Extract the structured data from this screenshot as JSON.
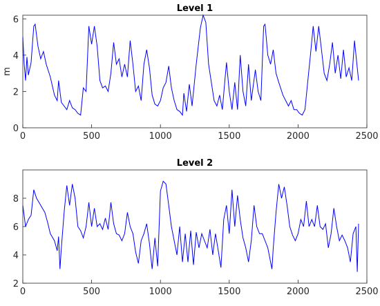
{
  "chart_data": [
    {
      "type": "line",
      "title": "Level 1",
      "ylabel": "m",
      "color": "#0000ff",
      "x": [
        0,
        10,
        20,
        30,
        40,
        60,
        80,
        90,
        110,
        130,
        150,
        170,
        200,
        230,
        250,
        260,
        280,
        300,
        320,
        340,
        360,
        380,
        400,
        420,
        440,
        460,
        480,
        500,
        520,
        540,
        560,
        580,
        600,
        620,
        640,
        660,
        680,
        700,
        720,
        740,
        760,
        780,
        800,
        820,
        840,
        860,
        880,
        900,
        920,
        940,
        960,
        980,
        1000,
        1020,
        1040,
        1060,
        1080,
        1100,
        1120,
        1140,
        1160,
        1170,
        1190,
        1210,
        1230,
        1260,
        1290,
        1310,
        1330,
        1350,
        1370,
        1390,
        1410,
        1430,
        1450,
        1480,
        1500,
        1520,
        1540,
        1560,
        1580,
        1600,
        1620,
        1640,
        1660,
        1690,
        1710,
        1730,
        1750,
        1760,
        1780,
        1800,
        1820,
        1840,
        1860,
        1890,
        1910,
        1930,
        1950,
        1970,
        1990,
        2010,
        2030,
        2050,
        2070,
        2090,
        2110,
        2130,
        2150,
        2170,
        2190,
        2210,
        2230,
        2250,
        2270,
        2290,
        2310,
        2330,
        2350,
        2370,
        2390,
        2410,
        2430,
        2440
      ],
      "values": [
        5.0,
        3.5,
        2.6,
        3.9,
        2.9,
        3.6,
        5.6,
        5.7,
        4.5,
        3.8,
        4.2,
        3.5,
        2.8,
        1.8,
        1.5,
        2.6,
        1.4,
        1.2,
        1.0,
        1.5,
        1.1,
        1.0,
        0.8,
        0.7,
        2.2,
        2.0,
        5.6,
        4.6,
        5.6,
        4.5,
        2.6,
        2.2,
        2.3,
        2.0,
        3.0,
        4.7,
        3.5,
        3.8,
        2.8,
        3.5,
        2.8,
        4.8,
        3.5,
        2.0,
        2.3,
        1.5,
        3.5,
        4.3,
        3.3,
        1.8,
        1.3,
        1.2,
        1.5,
        2.2,
        2.5,
        3.4,
        2.2,
        1.5,
        1.0,
        0.9,
        0.7,
        1.9,
        0.9,
        2.4,
        1.2,
        3.5,
        5.5,
        6.2,
        5.8,
        3.5,
        2.5,
        1.5,
        1.2,
        1.8,
        1.0,
        3.6,
        2.0,
        1.0,
        2.5,
        1.0,
        4.0,
        2.0,
        1.2,
        3.5,
        1.5,
        3.2,
        2.0,
        1.5,
        5.6,
        5.7,
        4.0,
        3.5,
        4.3,
        3.0,
        2.5,
        1.8,
        1.5,
        1.2,
        1.5,
        1.0,
        1.0,
        0.8,
        0.7,
        1.0,
        2.5,
        4.0,
        5.6,
        4.2,
        5.6,
        4.3,
        3.0,
        2.6,
        3.5,
        4.7,
        3.0,
        4.0,
        2.7,
        4.3,
        2.8,
        3.3,
        2.6,
        4.8,
        3.3,
        2.6
      ],
      "xlim": [
        0,
        2500
      ],
      "xticks": [
        0,
        500,
        1000,
        1500,
        2000,
        2500
      ],
      "ylim": [
        0,
        6.2
      ],
      "yticks": [
        0,
        2,
        4,
        6
      ]
    },
    {
      "type": "line",
      "title": "Level 2",
      "color": "#0000ff",
      "x": [
        0,
        20,
        40,
        60,
        80,
        100,
        130,
        160,
        180,
        200,
        230,
        250,
        260,
        270,
        280,
        300,
        320,
        340,
        360,
        380,
        400,
        420,
        440,
        460,
        480,
        500,
        520,
        540,
        560,
        580,
        600,
        620,
        640,
        660,
        680,
        700,
        720,
        740,
        760,
        780,
        800,
        820,
        840,
        860,
        880,
        900,
        920,
        940,
        960,
        980,
        1000,
        1020,
        1040,
        1060,
        1080,
        1100,
        1120,
        1140,
        1160,
        1180,
        1200,
        1220,
        1240,
        1260,
        1280,
        1300,
        1320,
        1340,
        1360,
        1380,
        1400,
        1420,
        1440,
        1460,
        1480,
        1500,
        1520,
        1540,
        1560,
        1580,
        1600,
        1620,
        1640,
        1660,
        1680,
        1700,
        1720,
        1740,
        1760,
        1780,
        1800,
        1810,
        1820,
        1840,
        1860,
        1880,
        1900,
        1920,
        1940,
        1960,
        1980,
        2000,
        2020,
        2040,
        2060,
        2080,
        2100,
        2120,
        2140,
        2160,
        2180,
        2200,
        2220,
        2240,
        2260,
        2280,
        2300,
        2320,
        2340,
        2360,
        2380,
        2400,
        2420,
        2430,
        2440
      ],
      "values": [
        7.5,
        6.0,
        6.5,
        6.8,
        8.6,
        8.0,
        7.5,
        7.0,
        6.3,
        5.5,
        5.0,
        4.3,
        5.3,
        3.0,
        4.5,
        7.0,
        8.9,
        7.5,
        9.0,
        8.0,
        6.0,
        5.7,
        5.2,
        6.0,
        7.7,
        6.0,
        7.3,
        6.0,
        6.2,
        5.8,
        6.6,
        5.8,
        7.7,
        6.2,
        5.5,
        5.4,
        5.0,
        5.5,
        7.0,
        6.0,
        5.5,
        4.2,
        3.4,
        5.0,
        5.5,
        6.2,
        4.8,
        3.0,
        5.2,
        3.2,
        8.5,
        9.2,
        9.0,
        7.5,
        6.0,
        5.0,
        4.0,
        6.0,
        3.5,
        5.5,
        3.5,
        5.7,
        3.3,
        5.6,
        4.5,
        5.5,
        5.0,
        4.5,
        5.8,
        4.0,
        5.5,
        4.3,
        3.1,
        6.5,
        7.5,
        5.5,
        8.6,
        6.0,
        8.2,
        6.5,
        5.2,
        4.5,
        3.5,
        5.0,
        7.5,
        6.0,
        5.5,
        5.5,
        5.0,
        4.5,
        3.5,
        3.0,
        4.5,
        7.0,
        9.0,
        8.0,
        8.8,
        7.5,
        6.0,
        5.4,
        5.0,
        5.5,
        6.5,
        6.0,
        7.8,
        6.0,
        6.5,
        6.0,
        7.5,
        6.0,
        5.8,
        6.2,
        4.5,
        5.5,
        7.3,
        6.0,
        5.0,
        5.4,
        5.0,
        4.5,
        3.5,
        5.5,
        6.0,
        2.8,
        6.2
      ],
      "xlim": [
        0,
        2500
      ],
      "xticks": [
        0,
        500,
        1000,
        1500,
        2000,
        2500
      ],
      "ylim": [
        2,
        10
      ],
      "yticks": [
        2,
        4,
        6,
        8
      ]
    }
  ]
}
